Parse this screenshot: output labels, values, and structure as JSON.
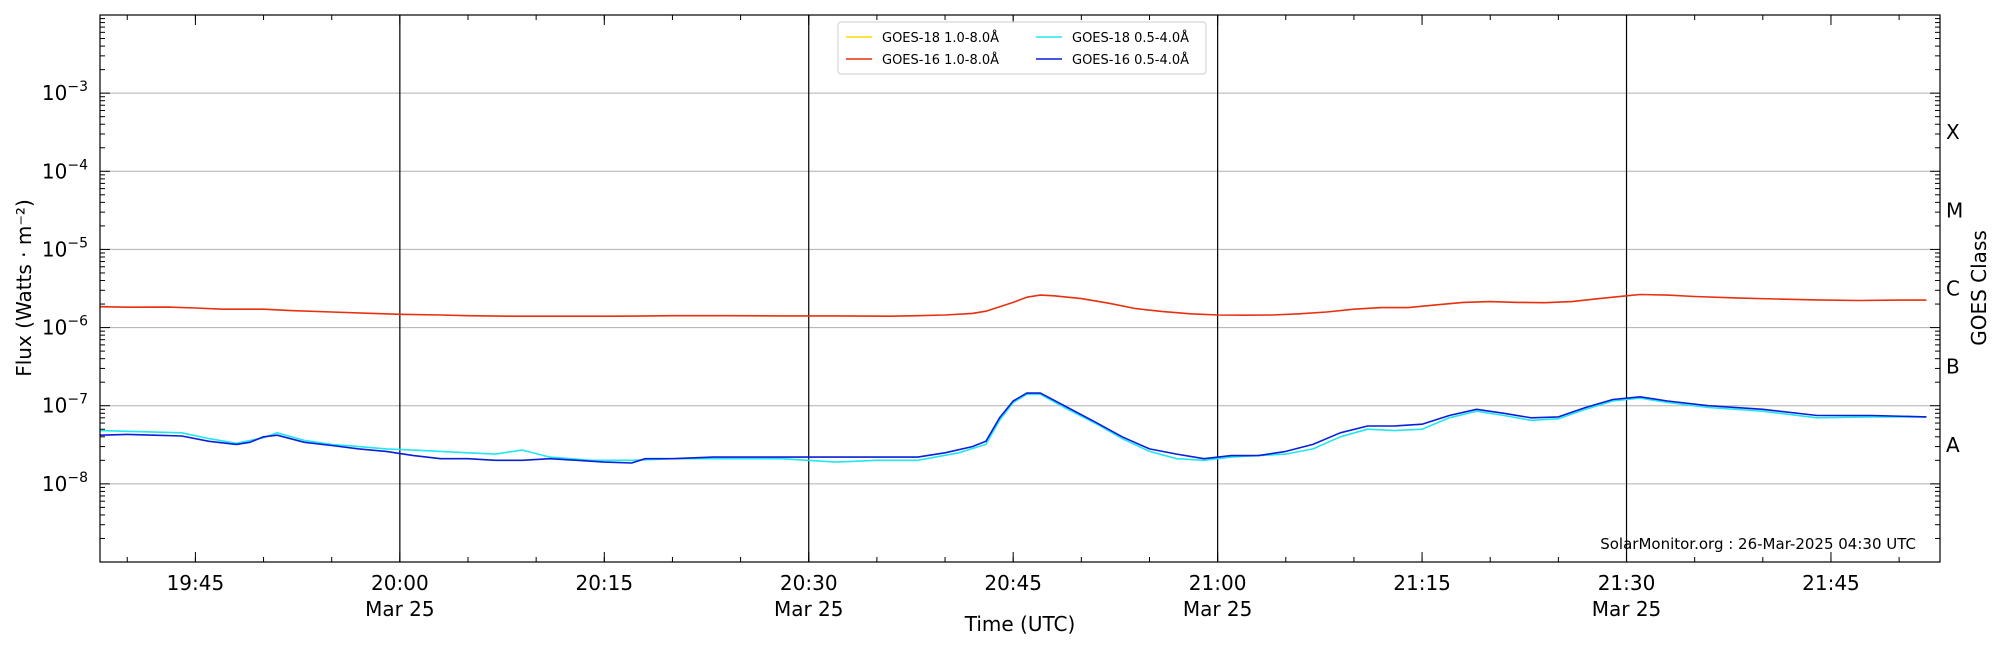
{
  "chart_data": {
    "type": "line",
    "title": "",
    "xlabel": "Time (UTC)",
    "ylabel_left": "Flux (Watts · m⁻²)",
    "ylabel_right": "GOES Class",
    "y_scale": "log",
    "ylim": [
      1e-09,
      0.01
    ],
    "xlim": [
      "19:38",
      "21:53"
    ],
    "y_ticks": [
      {
        "value": 1e-08,
        "base": "10",
        "exp": "−8"
      },
      {
        "value": 1e-07,
        "base": "10",
        "exp": "−7"
      },
      {
        "value": 1e-06,
        "base": "10",
        "exp": "−6"
      },
      {
        "value": 1e-05,
        "base": "10",
        "exp": "−5"
      },
      {
        "value": 0.0001,
        "base": "10",
        "exp": "−4"
      },
      {
        "value": 0.001,
        "base": "10",
        "exp": "−3"
      }
    ],
    "x_ticks": [
      {
        "time": "19:45",
        "label": "19:45",
        "sublabel": ""
      },
      {
        "time": "20:00",
        "label": "20:00",
        "sublabel": "Mar 25"
      },
      {
        "time": "20:15",
        "label": "20:15",
        "sublabel": ""
      },
      {
        "time": "20:30",
        "label": "20:30",
        "sublabel": "Mar 25"
      },
      {
        "time": "20:45",
        "label": "20:45",
        "sublabel": ""
      },
      {
        "time": "21:00",
        "label": "21:00",
        "sublabel": "Mar 25"
      },
      {
        "time": "21:15",
        "label": "21:15",
        "sublabel": ""
      },
      {
        "time": "21:30",
        "label": "21:30",
        "sublabel": "Mar 25"
      },
      {
        "time": "21:45",
        "label": "21:45",
        "sublabel": ""
      }
    ],
    "vertical_lines": [
      "20:00",
      "20:30",
      "21:00",
      "21:30"
    ],
    "goes_classes": [
      {
        "label": "A",
        "value": 3.16e-08
      },
      {
        "label": "B",
        "value": 3.16e-07
      },
      {
        "label": "C",
        "value": 3.16e-06
      },
      {
        "label": "M",
        "value": 3.16e-05
      },
      {
        "label": "X",
        "value": 0.000316
      }
    ],
    "grid": "horizontal at decades",
    "legend_position": "top-center",
    "legend": [
      {
        "name": "GOES-18 1.0-8.0Å",
        "color": "#ffd700"
      },
      {
        "name": "GOES-16 1.0-8.0Å",
        "color": "#e8300e"
      },
      {
        "name": "GOES-18 0.5-4.0Å",
        "color": "#22e6f0"
      },
      {
        "name": "GOES-16 0.5-4.0Å",
        "color": "#0a1fd8"
      }
    ],
    "series": [
      {
        "name": "GOES-16 1.0-8.0Å",
        "color": "#e8300e",
        "points": [
          [
            "19:38",
            1.85e-06
          ],
          [
            "19:40",
            1.82e-06
          ],
          [
            "19:43",
            1.83e-06
          ],
          [
            "19:45",
            1.78e-06
          ],
          [
            "19:47",
            1.72e-06
          ],
          [
            "19:50",
            1.72e-06
          ],
          [
            "19:52",
            1.65e-06
          ],
          [
            "19:55",
            1.58e-06
          ],
          [
            "19:58",
            1.52e-06
          ],
          [
            "20:00",
            1.48e-06
          ],
          [
            "20:03",
            1.45e-06
          ],
          [
            "20:05",
            1.42e-06
          ],
          [
            "20:08",
            1.4e-06
          ],
          [
            "20:12",
            1.4e-06
          ],
          [
            "20:16",
            1.4e-06
          ],
          [
            "20:20",
            1.42e-06
          ],
          [
            "20:24",
            1.42e-06
          ],
          [
            "20:28",
            1.41e-06
          ],
          [
            "20:32",
            1.41e-06
          ],
          [
            "20:36",
            1.4e-06
          ],
          [
            "20:38",
            1.42e-06
          ],
          [
            "20:40",
            1.45e-06
          ],
          [
            "20:42",
            1.52e-06
          ],
          [
            "20:43",
            1.62e-06
          ],
          [
            "20:45",
            2.1e-06
          ],
          [
            "20:46",
            2.45e-06
          ],
          [
            "20:47",
            2.6e-06
          ],
          [
            "20:48",
            2.55e-06
          ],
          [
            "20:50",
            2.35e-06
          ],
          [
            "20:52",
            2.05e-06
          ],
          [
            "20:54",
            1.75e-06
          ],
          [
            "20:56",
            1.6e-06
          ],
          [
            "20:58",
            1.5e-06
          ],
          [
            "21:00",
            1.45e-06
          ],
          [
            "21:02",
            1.44e-06
          ],
          [
            "21:04",
            1.45e-06
          ],
          [
            "21:06",
            1.5e-06
          ],
          [
            "21:08",
            1.58e-06
          ],
          [
            "21:10",
            1.72e-06
          ],
          [
            "21:12",
            1.8e-06
          ],
          [
            "21:14",
            1.8e-06
          ],
          [
            "21:16",
            1.95e-06
          ],
          [
            "21:18",
            2.1e-06
          ],
          [
            "21:20",
            2.15e-06
          ],
          [
            "21:22",
            2.1e-06
          ],
          [
            "21:24",
            2.08e-06
          ],
          [
            "21:26",
            2.15e-06
          ],
          [
            "21:28",
            2.35e-06
          ],
          [
            "21:30",
            2.55e-06
          ],
          [
            "21:31",
            2.65e-06
          ],
          [
            "21:33",
            2.6e-06
          ],
          [
            "21:35",
            2.5e-06
          ],
          [
            "21:38",
            2.4e-06
          ],
          [
            "21:41",
            2.32e-06
          ],
          [
            "21:44",
            2.26e-06
          ],
          [
            "21:47",
            2.22e-06
          ],
          [
            "21:50",
            2.25e-06
          ],
          [
            "21:52",
            2.25e-06
          ]
        ]
      },
      {
        "name": "GOES-18 0.5-4.0Å",
        "color": "#22e6f0",
        "points": [
          [
            "19:38",
            4.8e-08
          ],
          [
            "19:40",
            4.7e-08
          ],
          [
            "19:42",
            4.6e-08
          ],
          [
            "19:44",
            4.5e-08
          ],
          [
            "19:46",
            3.8e-08
          ],
          [
            "19:48",
            3.3e-08
          ],
          [
            "19:50",
            3.9e-08
          ],
          [
            "19:51",
            4.5e-08
          ],
          [
            "19:53",
            3.6e-08
          ],
          [
            "19:55",
            3.2e-08
          ],
          [
            "19:57",
            3e-08
          ],
          [
            "19:59",
            2.8e-08
          ],
          [
            "20:01",
            2.7e-08
          ],
          [
            "20:03",
            2.6e-08
          ],
          [
            "20:05",
            2.5e-08
          ],
          [
            "20:07",
            2.4e-08
          ],
          [
            "20:09",
            2.7e-08
          ],
          [
            "20:11",
            2.2e-08
          ],
          [
            "20:14",
            2e-08
          ],
          [
            "20:17",
            2e-08
          ],
          [
            "20:20",
            2.1e-08
          ],
          [
            "20:24",
            2.1e-08
          ],
          [
            "20:28",
            2.1e-08
          ],
          [
            "20:32",
            1.9e-08
          ],
          [
            "20:35",
            2e-08
          ],
          [
            "20:38",
            2e-08
          ],
          [
            "20:41",
            2.5e-08
          ],
          [
            "20:43",
            3.2e-08
          ],
          [
            "20:44",
            6.5e-08
          ],
          [
            "20:45",
            1.1e-07
          ],
          [
            "20:46",
            1.4e-07
          ],
          [
            "20:47",
            1.4e-07
          ],
          [
            "20:49",
            9e-08
          ],
          [
            "20:51",
            6e-08
          ],
          [
            "20:53",
            3.8e-08
          ],
          [
            "20:55",
            2.6e-08
          ],
          [
            "20:57",
            2.1e-08
          ],
          [
            "20:59",
            2e-08
          ],
          [
            "21:01",
            2.2e-08
          ],
          [
            "21:03",
            2.3e-08
          ],
          [
            "21:05",
            2.4e-08
          ],
          [
            "21:07",
            2.8e-08
          ],
          [
            "21:09",
            4e-08
          ],
          [
            "21:11",
            5e-08
          ],
          [
            "21:13",
            4.8e-08
          ],
          [
            "21:15",
            5e-08
          ],
          [
            "21:17",
            7e-08
          ],
          [
            "21:19",
            8.5e-08
          ],
          [
            "21:21",
            7.5e-08
          ],
          [
            "21:23",
            6.5e-08
          ],
          [
            "21:25",
            6.8e-08
          ],
          [
            "21:27",
            9e-08
          ],
          [
            "21:29",
            1.15e-07
          ],
          [
            "21:31",
            1.25e-07
          ],
          [
            "21:33",
            1.1e-07
          ],
          [
            "21:36",
            9.5e-08
          ],
          [
            "21:40",
            8.5e-08
          ],
          [
            "21:44",
            7e-08
          ],
          [
            "21:48",
            7.2e-08
          ],
          [
            "21:52",
            7.2e-08
          ]
        ]
      },
      {
        "name": "GOES-16 0.5-4.0Å",
        "color": "#0a1fd8",
        "points": [
          [
            "19:38",
            4.2e-08
          ],
          [
            "19:40",
            4.3e-08
          ],
          [
            "19:42",
            4.2e-08
          ],
          [
            "19:44",
            4.1e-08
          ],
          [
            "19:46",
            3.5e-08
          ],
          [
            "19:48",
            3.2e-08
          ],
          [
            "19:49",
            3.4e-08
          ],
          [
            "19:50",
            4e-08
          ],
          [
            "19:51",
            4.2e-08
          ],
          [
            "19:53",
            3.4e-08
          ],
          [
            "19:55",
            3.1e-08
          ],
          [
            "19:57",
            2.8e-08
          ],
          [
            "19:59",
            2.6e-08
          ],
          [
            "20:01",
            2.3e-08
          ],
          [
            "20:03",
            2.1e-08
          ],
          [
            "20:05",
            2.1e-08
          ],
          [
            "20:07",
            2e-08
          ],
          [
            "20:09",
            2e-08
          ],
          [
            "20:11",
            2.1e-08
          ],
          [
            "20:13",
            2e-08
          ],
          [
            "20:15",
            1.9e-08
          ],
          [
            "20:17",
            1.85e-08
          ],
          [
            "20:18",
            2.1e-08
          ],
          [
            "20:20",
            2.1e-08
          ],
          [
            "20:23",
            2.2e-08
          ],
          [
            "20:26",
            2.2e-08
          ],
          [
            "20:29",
            2.2e-08
          ],
          [
            "20:32",
            2.2e-08
          ],
          [
            "20:35",
            2.2e-08
          ],
          [
            "20:38",
            2.2e-08
          ],
          [
            "20:40",
            2.5e-08
          ],
          [
            "20:42",
            3e-08
          ],
          [
            "20:43",
            3.5e-08
          ],
          [
            "20:44",
            7e-08
          ],
          [
            "20:45",
            1.15e-07
          ],
          [
            "20:46",
            1.45e-07
          ],
          [
            "20:47",
            1.45e-07
          ],
          [
            "20:49",
            9.5e-08
          ],
          [
            "20:51",
            6.2e-08
          ],
          [
            "20:53",
            4e-08
          ],
          [
            "20:55",
            2.8e-08
          ],
          [
            "20:57",
            2.4e-08
          ],
          [
            "20:59",
            2.1e-08
          ],
          [
            "21:01",
            2.3e-08
          ],
          [
            "21:03",
            2.3e-08
          ],
          [
            "21:05",
            2.6e-08
          ],
          [
            "21:07",
            3.2e-08
          ],
          [
            "21:09",
            4.5e-08
          ],
          [
            "21:11",
            5.5e-08
          ],
          [
            "21:13",
            5.5e-08
          ],
          [
            "21:15",
            5.8e-08
          ],
          [
            "21:17",
            7.5e-08
          ],
          [
            "21:19",
            9e-08
          ],
          [
            "21:21",
            8e-08
          ],
          [
            "21:23",
            7e-08
          ],
          [
            "21:25",
            7.2e-08
          ],
          [
            "21:27",
            9.5e-08
          ],
          [
            "21:29",
            1.2e-07
          ],
          [
            "21:31",
            1.3e-07
          ],
          [
            "21:33",
            1.15e-07
          ],
          [
            "21:36",
            1e-07
          ],
          [
            "21:40",
            9e-08
          ],
          [
            "21:44",
            7.5e-08
          ],
          [
            "21:48",
            7.5e-08
          ],
          [
            "21:52",
            7.2e-08
          ]
        ]
      }
    ],
    "watermark": "SolarMonitor.org : 26-Mar-2025 04:30 UTC"
  }
}
